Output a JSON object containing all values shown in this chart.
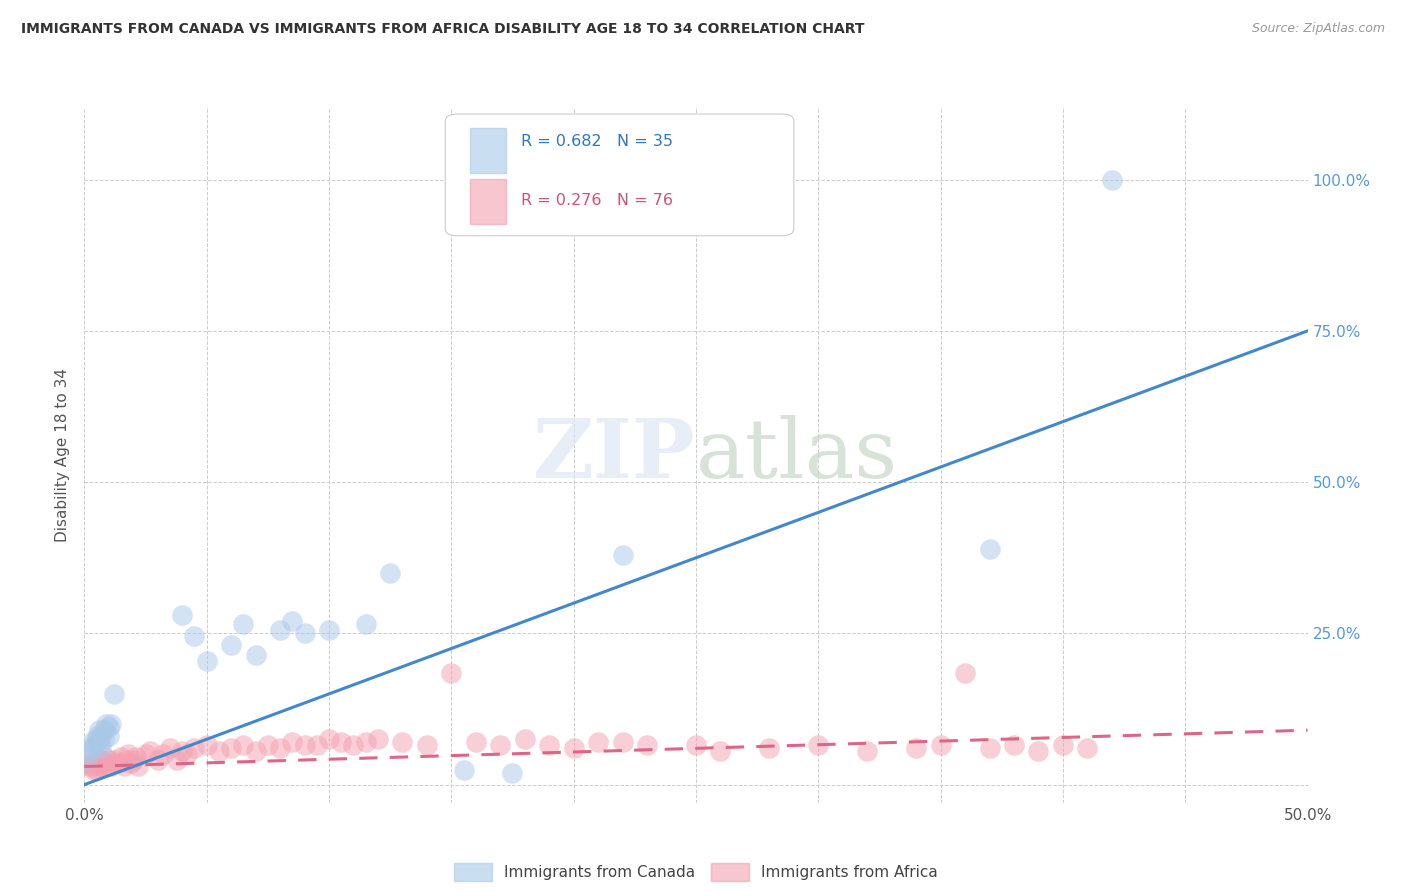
{
  "title": "IMMIGRANTS FROM CANADA VS IMMIGRANTS FROM AFRICA DISABILITY AGE 18 TO 34 CORRELATION CHART",
  "source": "Source: ZipAtlas.com",
  "ylabel": "Disability Age 18 to 34",
  "xlim": [
    0,
    0.5
  ],
  "ylim": [
    -0.03,
    1.12
  ],
  "canada_R": 0.682,
  "canada_N": 35,
  "africa_R": 0.276,
  "africa_N": 76,
  "canada_color": "#a8c8e8",
  "africa_color": "#f4a0b0",
  "canada_line_color": "#4488cc",
  "africa_line_color": "#dd6688",
  "legend_label_canada": "Immigrants from Canada",
  "legend_label_africa": "Immigrants from Africa",
  "canada_scatter_x": [
    0.001,
    0.002,
    0.003,
    0.003,
    0.004,
    0.005,
    0.005,
    0.006,
    0.006,
    0.007,
    0.007,
    0.008,
    0.008,
    0.009,
    0.01,
    0.01,
    0.011,
    0.012,
    0.04,
    0.045,
    0.05,
    0.06,
    0.065,
    0.07,
    0.08,
    0.085,
    0.09,
    0.1,
    0.115,
    0.125,
    0.155,
    0.175,
    0.22,
    0.37,
    0.42
  ],
  "canada_scatter_y": [
    0.04,
    0.055,
    0.06,
    0.07,
    0.065,
    0.075,
    0.08,
    0.07,
    0.09,
    0.06,
    0.08,
    0.075,
    0.09,
    0.1,
    0.08,
    0.095,
    0.1,
    0.15,
    0.28,
    0.245,
    0.205,
    0.23,
    0.265,
    0.215,
    0.255,
    0.27,
    0.25,
    0.255,
    0.265,
    0.35,
    0.025,
    0.02,
    0.38,
    0.39,
    1.0
  ],
  "africa_scatter_x": [
    0.001,
    0.002,
    0.003,
    0.004,
    0.004,
    0.005,
    0.005,
    0.006,
    0.006,
    0.007,
    0.007,
    0.008,
    0.008,
    0.009,
    0.01,
    0.01,
    0.011,
    0.012,
    0.013,
    0.014,
    0.015,
    0.016,
    0.017,
    0.018,
    0.019,
    0.02,
    0.021,
    0.022,
    0.025,
    0.027,
    0.03,
    0.032,
    0.035,
    0.038,
    0.04,
    0.042,
    0.045,
    0.05,
    0.055,
    0.06,
    0.065,
    0.07,
    0.075,
    0.08,
    0.085,
    0.09,
    0.095,
    0.1,
    0.105,
    0.11,
    0.115,
    0.12,
    0.13,
    0.14,
    0.15,
    0.16,
    0.17,
    0.18,
    0.19,
    0.2,
    0.21,
    0.22,
    0.23,
    0.25,
    0.26,
    0.28,
    0.3,
    0.32,
    0.34,
    0.35,
    0.36,
    0.37,
    0.38,
    0.39,
    0.4,
    0.41
  ],
  "africa_scatter_y": [
    0.035,
    0.03,
    0.03,
    0.025,
    0.035,
    0.025,
    0.04,
    0.03,
    0.04,
    0.03,
    0.04,
    0.035,
    0.045,
    0.035,
    0.03,
    0.04,
    0.03,
    0.04,
    0.035,
    0.035,
    0.045,
    0.03,
    0.04,
    0.05,
    0.035,
    0.04,
    0.045,
    0.03,
    0.05,
    0.055,
    0.04,
    0.05,
    0.06,
    0.04,
    0.055,
    0.05,
    0.06,
    0.065,
    0.055,
    0.06,
    0.065,
    0.055,
    0.065,
    0.06,
    0.07,
    0.065,
    0.065,
    0.075,
    0.07,
    0.065,
    0.07,
    0.075,
    0.07,
    0.065,
    0.185,
    0.07,
    0.065,
    0.075,
    0.065,
    0.06,
    0.07,
    0.07,
    0.065,
    0.065,
    0.055,
    0.06,
    0.065,
    0.055,
    0.06,
    0.065,
    0.185,
    0.06,
    0.065,
    0.055,
    0.065,
    0.06
  ],
  "canada_trendline_x": [
    0.0,
    0.5
  ],
  "canada_trendline_y": [
    0.0,
    0.75
  ],
  "africa_trendline_x": [
    0.0,
    0.5
  ],
  "africa_trendline_y": [
    0.03,
    0.09
  ]
}
